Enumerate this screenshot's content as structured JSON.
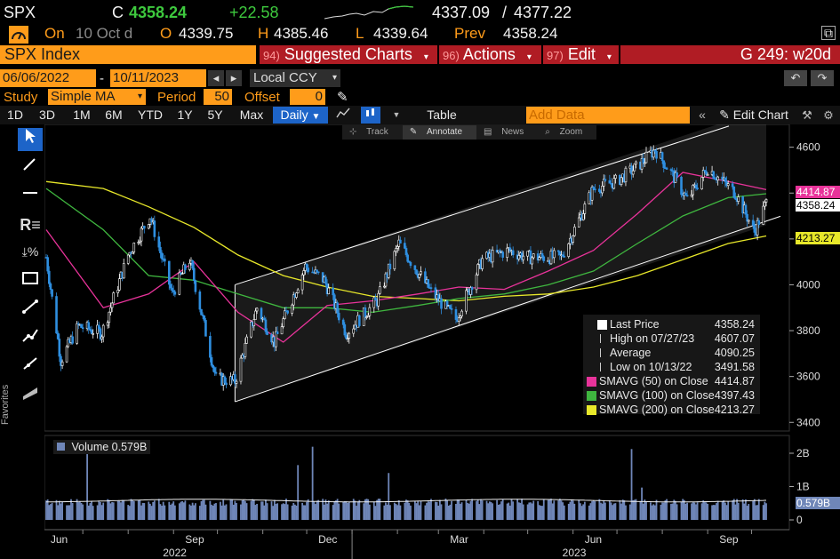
{
  "header": {
    "ticker": "SPX",
    "last_prefix": "C",
    "last_price": "4358.24",
    "change": "+22.58",
    "range_low": "4337.09",
    "range_sep": "/",
    "range_high": "4377.22",
    "date_prefix": "On",
    "date": "10 Oct d",
    "open_label": "O",
    "open": "4339.75",
    "high_label": "H",
    "high": "4385.46",
    "low_label": "L",
    "low": "4339.64",
    "prev_label": "Prev",
    "prev": "4358.24"
  },
  "menubar": {
    "security": "SPX Index",
    "suggested_num": "94)",
    "suggested": "Suggested Charts",
    "actions_num": "96)",
    "actions": "Actions",
    "edit_num": "97)",
    "edit": "Edit",
    "function_code": "G 249: w20d"
  },
  "daterange": {
    "start": "06/06/2022",
    "dash": "-",
    "end": "10/11/2023",
    "currency": "Local CCY"
  },
  "study": {
    "label": "Study",
    "type": "Simple MA",
    "period_label": "Period",
    "period": "50",
    "offset_label": "Offset",
    "offset": "0"
  },
  "toolbar": {
    "periods": [
      "1D",
      "3D",
      "1M",
      "6M",
      "YTD",
      "1Y",
      "5Y",
      "Max"
    ],
    "frequency": "Daily",
    "table": "Table",
    "add_data_placeholder": "Add Data",
    "edit_chart": "Edit Chart"
  },
  "chart_tools": {
    "track": "Track",
    "annotate": "Annotate",
    "news": "News",
    "zoom": "Zoom"
  },
  "favorites_label": "Favorites",
  "legend": [
    {
      "name": "Last Price",
      "value": "4358.24",
      "color": "#ffffff"
    },
    {
      "name": "High on 07/27/23",
      "value": "4607.07",
      "color": ""
    },
    {
      "name": "Average",
      "value": "4090.25",
      "color": ""
    },
    {
      "name": "Low on 10/13/22",
      "value": "3491.58",
      "color": ""
    },
    {
      "name": "SMAVG (50)  on Close",
      "value": "4414.87",
      "color": "#e8339a"
    },
    {
      "name": "SMAVG (100)  on Close",
      "value": "4397.43",
      "color": "#3fb63f"
    },
    {
      "name": "SMAVG (200)  on Close",
      "value": "4213.27",
      "color": "#e8e82a"
    }
  ],
  "price_tags": [
    {
      "value": "4414.87",
      "color": "#e8339a"
    },
    {
      "value": "4358.24",
      "color": "#ffffff"
    },
    {
      "value": "4213.27",
      "color": "#e8e82a"
    }
  ],
  "volume": {
    "label": "Volume",
    "value": "0.579B",
    "tag": "0.579B"
  },
  "chart_data": {
    "type": "line",
    "price_axis": {
      "ticks": [
        3400,
        3600,
        3800,
        4000,
        4200,
        4400,
        4600
      ],
      "labels": [
        "3400",
        "3600",
        "3800",
        "4000",
        "4200",
        "4400",
        "4600"
      ],
      "range": [
        3370,
        4680
      ]
    },
    "volume_axis": {
      "ticks": [
        0,
        1,
        2
      ],
      "labels": [
        "0",
        "1B",
        "2B"
      ]
    },
    "x_month_labels": [
      "Jun",
      "Sep",
      "Dec",
      "Mar",
      "Jun",
      "Sep"
    ],
    "x_year_labels": [
      "2022",
      "2023"
    ],
    "last_price": {
      "x": [
        "2022-06-06",
        "2022-06-16",
        "2022-06-28",
        "2022-07-14",
        "2022-08-01",
        "2022-08-16",
        "2022-08-31",
        "2022-09-12",
        "2022-09-30",
        "2022-10-13",
        "2022-10-28",
        "2022-11-09",
        "2022-11-30",
        "2022-12-13",
        "2022-12-28",
        "2023-01-18",
        "2023-02-02",
        "2023-02-24",
        "2023-03-13",
        "2023-03-31",
        "2023-04-18",
        "2023-05-01",
        "2023-05-24",
        "2023-06-15",
        "2023-06-30",
        "2023-07-14",
        "2023-07-27",
        "2023-08-10",
        "2023-08-18",
        "2023-09-01",
        "2023-09-20",
        "2023-10-03",
        "2023-10-11"
      ],
      "y": [
        4120,
        3670,
        3820,
        3790,
        4130,
        4300,
        3960,
        4110,
        3590,
        3580,
        3900,
        3750,
        4080,
        4020,
        3790,
        3930,
        4180,
        3970,
        3850,
        4110,
        4150,
        4120,
        4120,
        4420,
        4450,
        4510,
        4590,
        4460,
        4370,
        4510,
        4400,
        4230,
        4358
      ]
    },
    "sma50": {
      "x": [
        "2022-06-06",
        "2022-07-15",
        "2022-08-15",
        "2022-09-15",
        "2022-10-15",
        "2022-11-15",
        "2022-12-15",
        "2023-01-15",
        "2023-02-15",
        "2023-03-15",
        "2023-04-15",
        "2023-05-15",
        "2023-06-15",
        "2023-07-15",
        "2023-08-15",
        "2023-09-15",
        "2023-10-11"
      ],
      "y": [
        4240,
        3900,
        3960,
        4100,
        3880,
        3750,
        3910,
        3930,
        3960,
        3990,
        3980,
        4060,
        4150,
        4310,
        4490,
        4450,
        4415
      ]
    },
    "sma100": {
      "x": [
        "2022-06-06",
        "2022-07-15",
        "2022-08-15",
        "2022-09-15",
        "2022-10-15",
        "2022-11-15",
        "2022-12-15",
        "2023-01-15",
        "2023-02-15",
        "2023-03-15",
        "2023-04-15",
        "2023-05-15",
        "2023-06-15",
        "2023-07-15",
        "2023-08-15",
        "2023-09-15",
        "2023-10-11"
      ],
      "y": [
        4420,
        4240,
        4040,
        4020,
        3960,
        3900,
        3900,
        3880,
        3910,
        3940,
        3960,
        4000,
        4060,
        4180,
        4300,
        4380,
        4397
      ]
    },
    "sma200": {
      "x": [
        "2022-06-06",
        "2022-07-15",
        "2022-08-15",
        "2022-09-15",
        "2022-10-15",
        "2022-11-15",
        "2022-12-15",
        "2023-01-15",
        "2023-02-15",
        "2023-03-15",
        "2023-04-15",
        "2023-05-15",
        "2023-06-15",
        "2023-07-15",
        "2023-08-15",
        "2023-09-15",
        "2023-10-11"
      ],
      "y": [
        4450,
        4420,
        4340,
        4250,
        4130,
        4040,
        3990,
        3950,
        3940,
        3930,
        3950,
        3960,
        3990,
        4040,
        4110,
        4180,
        4213
      ]
    },
    "channel": {
      "lower": {
        "x": [
          "2022-10-13",
          "2023-10-11"
        ],
        "y": [
          3490,
          4260
        ]
      },
      "upper": {
        "x": [
          "2022-10-13",
          "2023-10-11"
        ],
        "y": [
          4000,
          4770
        ]
      }
    }
  }
}
